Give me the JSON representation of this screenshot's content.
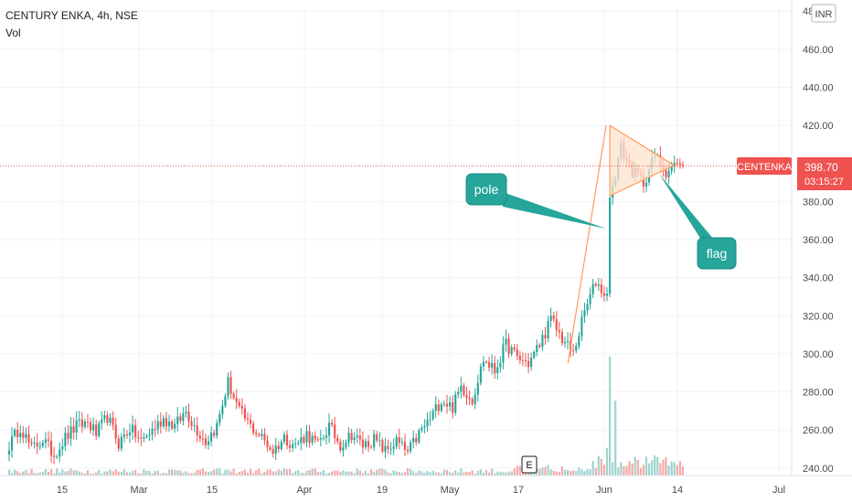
{
  "header": {
    "symbol_line": "CENTURY ENKA, 4h, NSE",
    "volume_label": "Vol",
    "currency": "INR"
  },
  "price_tag": {
    "symbol": "CENTENKA",
    "price": "398.70",
    "countdown": "03:15:27"
  },
  "event_badge": "E",
  "annotations": {
    "pole": "pole",
    "flag": "flag"
  },
  "colors": {
    "up": "#26a69a",
    "down": "#ef5350",
    "vol_up": "#9ed3cd",
    "vol_down": "#f5a9a7",
    "pattern_line": "#ff9a5c",
    "pattern_fill": "#ffe3cc",
    "callout": "#26a69a",
    "price_tag": "#ef5350",
    "price_line": "#ef5350",
    "grid": "#f0f3fa"
  },
  "chart_data": {
    "type": "candlestick",
    "timeframe": "4h",
    "y_axis": {
      "position": "right",
      "ticks": [
        "240.00",
        "260.00",
        "280.00",
        "300.00",
        "320.00",
        "340.00",
        "360.00",
        "380.00",
        "400.00",
        "420.00",
        "440.00",
        "460.00",
        "480.00"
      ],
      "ylim": [
        238,
        482
      ]
    },
    "x_axis": {
      "ticks": [
        "15",
        "Mar",
        "15",
        "Apr",
        "19",
        "May",
        "17",
        "Jun",
        "14",
        "Jul"
      ]
    },
    "current_price": 398.7,
    "close_path": [
      [
        0,
        252
      ],
      [
        4,
        262
      ],
      [
        8,
        250
      ],
      [
        12,
        255
      ],
      [
        16,
        247
      ],
      [
        20,
        256
      ],
      [
        24,
        262
      ],
      [
        28,
        264
      ],
      [
        31,
        258
      ],
      [
        35,
        267
      ],
      [
        39,
        253
      ],
      [
        43,
        261
      ],
      [
        47,
        254
      ],
      [
        51,
        260
      ],
      [
        55,
        266
      ],
      [
        59,
        262
      ],
      [
        63,
        270
      ],
      [
        66,
        262
      ],
      [
        70,
        254
      ],
      [
        74,
        262
      ],
      [
        78,
        285
      ],
      [
        82,
        270
      ],
      [
        86,
        262
      ],
      [
        90,
        256
      ],
      [
        94,
        249
      ],
      [
        98,
        256
      ],
      [
        102,
        252
      ],
      [
        106,
        258
      ],
      [
        110,
        252
      ],
      [
        114,
        262
      ],
      [
        118,
        252
      ],
      [
        122,
        258
      ],
      [
        126,
        252
      ],
      [
        130,
        255
      ],
      [
        134,
        249
      ],
      [
        138,
        254
      ],
      [
        142,
        248
      ],
      [
        146,
        258
      ],
      [
        150,
        266
      ],
      [
        154,
        276
      ],
      [
        158,
        272
      ],
      [
        161,
        283
      ],
      [
        165,
        276
      ],
      [
        169,
        297
      ],
      [
        173,
        291
      ],
      [
        177,
        305
      ],
      [
        181,
        298
      ],
      [
        185,
        295
      ],
      [
        189,
        305
      ],
      [
        193,
        318
      ],
      [
        197,
        308
      ],
      [
        201,
        300
      ],
      [
        205,
        322
      ],
      [
        209,
        338
      ],
      [
        213,
        330
      ],
      [
        214,
        382
      ],
      [
        218,
        408
      ],
      [
        222,
        396
      ],
      [
        226,
        390
      ],
      [
        230,
        404
      ],
      [
        234,
        396
      ],
      [
        238,
        400
      ],
      [
        240,
        398.7
      ]
    ],
    "price_extremes": {
      "low": 239,
      "high": 420
    },
    "pattern": {
      "pole": {
        "start": [
          201,
          295
        ],
        "end": [
          214,
          420
        ]
      },
      "flag_upper": [
        [
          214,
          420
        ],
        [
          233,
          399
        ]
      ],
      "flag_lower": [
        [
          214,
          383
        ],
        [
          233,
          399
        ]
      ]
    },
    "annotation_text": [
      "pole",
      "flag"
    ]
  }
}
